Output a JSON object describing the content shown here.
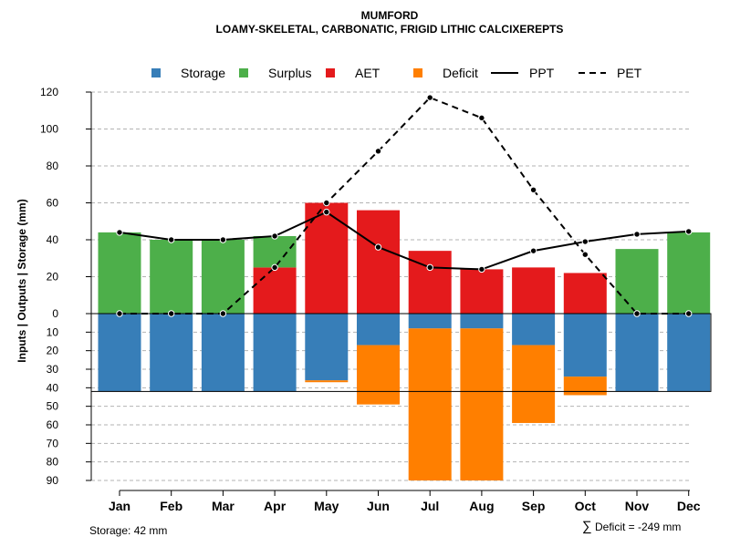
{
  "chart_data": {
    "type": "bar",
    "title": "MUMFORD",
    "subtitle": "LOAMY-SKELETAL, CARBONATIC, FRIGID LITHIC CALCIXEREPTS",
    "ylabel": "Inputs | Outputs | Storage    (mm)",
    "categories": [
      "Jan",
      "Feb",
      "Mar",
      "Apr",
      "May",
      "Jun",
      "Jul",
      "Aug",
      "Sep",
      "Oct",
      "Nov",
      "Dec"
    ],
    "ylim_top": [
      0,
      120
    ],
    "ylim_bottom": [
      0,
      90
    ],
    "yticks_top": [
      "0",
      "20",
      "40",
      "60",
      "80",
      "100",
      "120"
    ],
    "yticks_bottom": [
      "10",
      "20",
      "30",
      "40",
      "50",
      "60",
      "70",
      "80",
      "90"
    ],
    "legend": [
      "Storage",
      "Surplus",
      "AET",
      "Deficit",
      "PPT",
      "PET"
    ],
    "colors": {
      "storage": "#377eb8",
      "surplus": "#4daf4a",
      "aet": "#e41a1c",
      "deficit": "#ff7f00",
      "line": "#000000"
    },
    "series": [
      {
        "name": "Surplus",
        "values": [
          44,
          40,
          40,
          17,
          0,
          0,
          0,
          0,
          0,
          0,
          35,
          44
        ]
      },
      {
        "name": "AET",
        "values": [
          0,
          0,
          0,
          25,
          60,
          56,
          34,
          24,
          25,
          22,
          0,
          0
        ]
      },
      {
        "name": "Storage",
        "values": [
          42,
          42,
          42,
          42,
          36,
          17,
          8,
          8,
          17,
          34,
          42,
          42
        ]
      },
      {
        "name": "Deficit",
        "values": [
          0,
          0,
          0,
          0,
          1,
          32,
          82,
          82,
          42,
          10,
          0,
          0
        ]
      },
      {
        "name": "PPT",
        "values": [
          44,
          40,
          40,
          42,
          55,
          36,
          25,
          24,
          34,
          39,
          43,
          44.5
        ]
      },
      {
        "name": "PET",
        "values": [
          0,
          0,
          0,
          25,
          60,
          88,
          117,
          106,
          67,
          32,
          0,
          0
        ]
      }
    ],
    "storage_capacity": 42,
    "notes": {
      "storage": "Storage: 42 mm",
      "deficit_symbol": "∑",
      "deficit": "Deficit = -249 mm"
    }
  }
}
